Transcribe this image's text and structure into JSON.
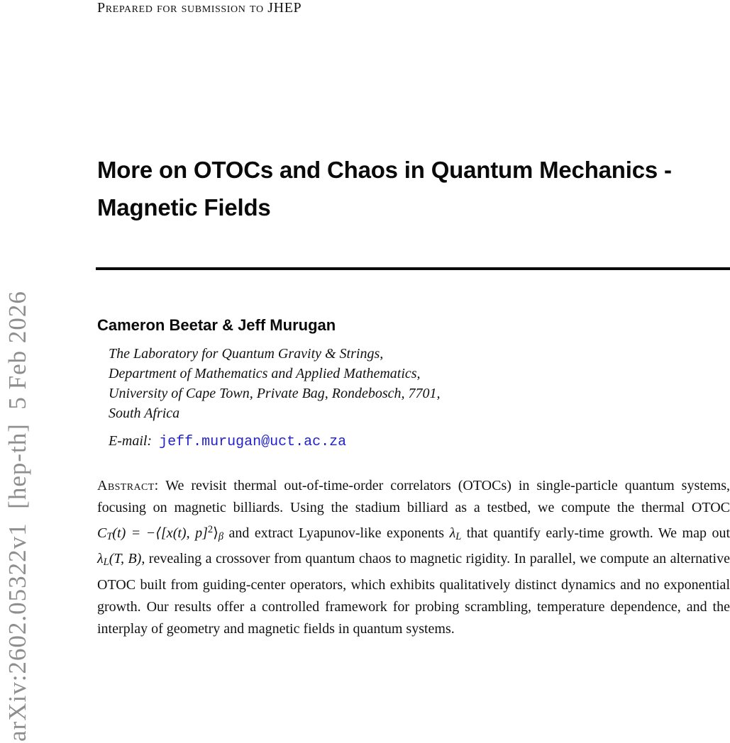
{
  "page": {
    "background": "#ffffff",
    "text_color": "#111111"
  },
  "arxiv": {
    "stamp": "arXiv:2602.05322v1  [hep-th]  5 Feb 2026",
    "color": "#8e8e8e"
  },
  "header": {
    "note": "Prepared for submission to JHEP"
  },
  "title": {
    "line1": "More on OTOCs and Chaos in Quantum Mechanics -",
    "line2": "Magnetic Fields"
  },
  "authors": {
    "names": "Cameron Beetar & Jeff Murugan"
  },
  "affiliation": {
    "lines": [
      "The Laboratory for Quantum Gravity & Strings,",
      "Department of Mathematics and Applied Mathematics,",
      "University of Cape Town, Private Bag, Rondebosch, 7701,",
      "South Africa"
    ]
  },
  "email": {
    "label": "E-mail:",
    "address": "jeff.murugan@uct.ac.za",
    "link_color": "#2222cc"
  },
  "abstract": {
    "label": "Abstract:",
    "part1": " We revisit thermal out-of-time-order correlators (OTOCs) in single-particle quantum systems, focusing on magnetic billiards. Using the stadium billiard as a testbed, we compute the thermal OTOC ",
    "math_otoc": {
      "var": "C",
      "sub_T": "T",
      "mid": "(t) = −⟨[x(t), p]",
      "sup_2": "2",
      "close": "⟩",
      "sub_beta": "β"
    },
    "part2": " and extract Lyapunov-like exponents ",
    "lambda_L": {
      "var": "λ",
      "sub": "L"
    },
    "part3": " that quantify early-time growth. We map out ",
    "lambda_LTB": {
      "var": "λ",
      "sub": "L",
      "args": "(T, B)"
    },
    "part4": ", revealing a crossover from quantum chaos to magnetic rigidity. In parallel, we compute an alternative OTOC built from guiding-center operators, which exhibits qualitatively distinct dynamics and no exponential growth. Our results offer a controlled framework for probing scrambling, temperature dependence, and the interplay of geometry and magnetic fields in quantum systems."
  }
}
